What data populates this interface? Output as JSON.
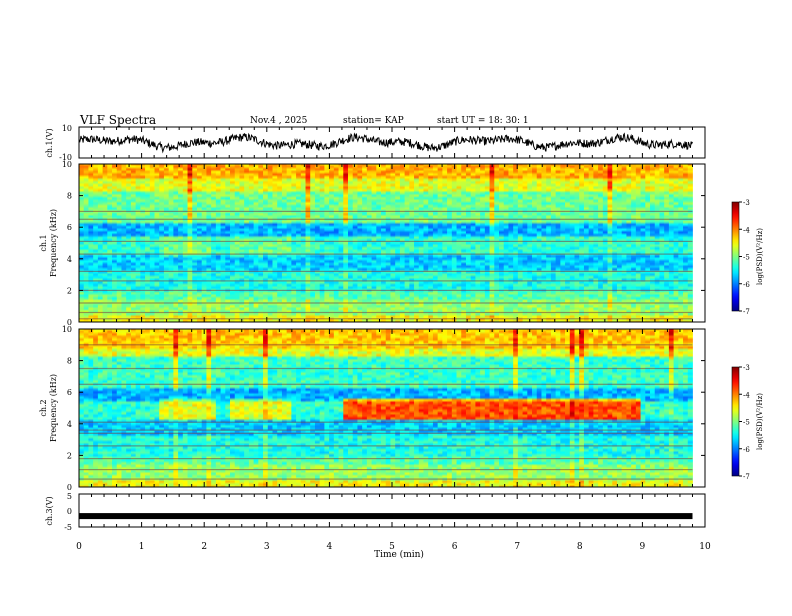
{
  "header": {
    "title": "VLF Spectra",
    "date": "Nov.4 , 2025",
    "station": "station= KAP",
    "start": "start UT = 18: 30: 1"
  },
  "chart_data": [
    {
      "type": "line",
      "name": "ch1-waveform",
      "ylabel": "ch.1(V)",
      "ylim": [
        -10,
        10
      ],
      "y_ticks": [
        "10",
        "-10"
      ],
      "xlim": [
        0,
        10
      ],
      "data_extent_min": 9.8,
      "amplitude_range": [
        -5,
        5
      ]
    },
    {
      "type": "heatmap",
      "name": "ch1-spectrogram",
      "ylabel": "Frequency (kHz)",
      "panel_label": "ch.1",
      "ylim": [
        0,
        10
      ],
      "y_ticks": [
        "0",
        "2",
        "4",
        "6",
        "8",
        "10"
      ],
      "xlim": [
        0,
        10
      ],
      "colorbar": {
        "label": "log(PSD)(V²/Hz)",
        "ticks": [
          "-3",
          "-4",
          "-5",
          "-6",
          "-7"
        ],
        "range": [
          -7,
          -3
        ]
      }
    },
    {
      "type": "heatmap",
      "name": "ch2-spectrogram",
      "ylabel": "Frequency (kHz)",
      "panel_label": "ch.2",
      "ylim": [
        0,
        10
      ],
      "y_ticks": [
        "0",
        "2",
        "4",
        "6",
        "8",
        "10"
      ],
      "xlim": [
        0,
        10
      ],
      "colorbar": {
        "label": "log(PSD)(V²/Hz)",
        "ticks": [
          "-3",
          "-4",
          "-5",
          "-6",
          "-7"
        ],
        "range": [
          -7,
          -3
        ]
      },
      "events": [
        {
          "x_start": 1.25,
          "x_end": 2.15,
          "note": "band 4.5-5.5 kHz enhanced"
        },
        {
          "x_start": 2.4,
          "x_end": 3.4,
          "note": "band 4.5-5.5 kHz enhanced"
        },
        {
          "x_start": 4.25,
          "x_end": 9.0,
          "note": "strong band ~5 kHz"
        }
      ]
    },
    {
      "type": "line",
      "name": "ch3-level",
      "ylabel": "ch.3(V)",
      "ylim": [
        -5,
        5
      ],
      "y_ticks": [
        "5",
        "0",
        "-5"
      ],
      "xlim": [
        0,
        10
      ],
      "constant_value": -1.7
    }
  ],
  "x_axis": {
    "label": "Time (min)",
    "ticks": [
      "0",
      "1",
      "2",
      "3",
      "4",
      "5",
      "6",
      "7",
      "8",
      "9",
      "10"
    ]
  }
}
